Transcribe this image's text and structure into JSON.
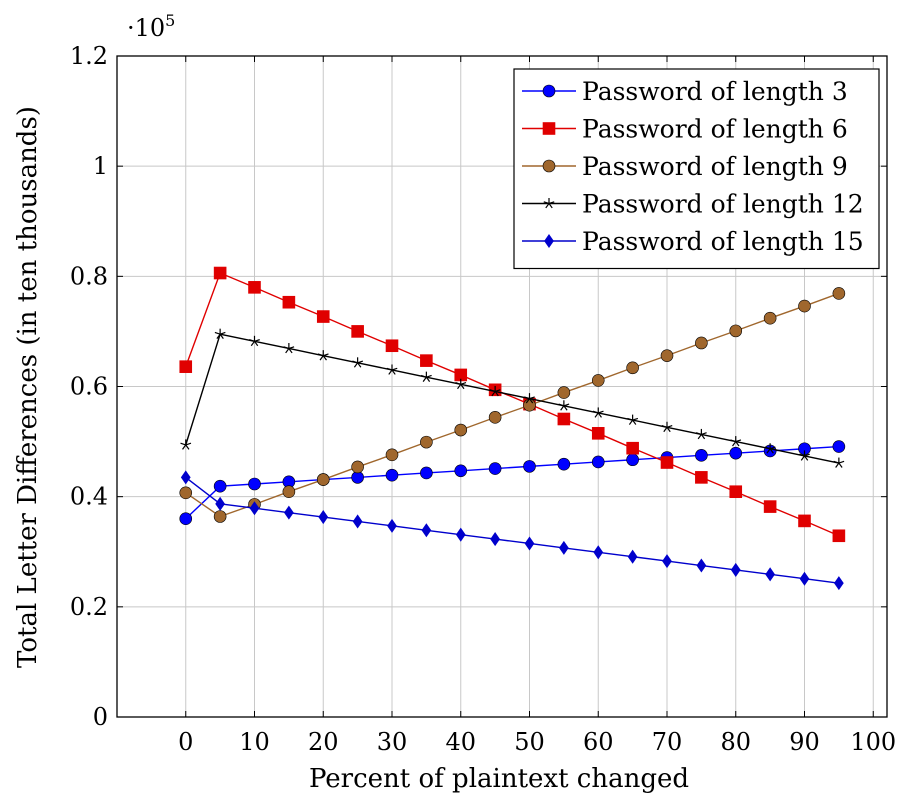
{
  "chart_data": {
    "type": "line",
    "title": "",
    "xlabel": "Percent of plaintext changed",
    "ylabel": "Total Letter Differences (in ten thousands)",
    "y_scale_note": {
      "base": "·10",
      "exponent": "5"
    },
    "xlim": [
      -10,
      102
    ],
    "ylim": [
      0,
      120000
    ],
    "x_ticks": [
      0,
      10,
      20,
      30,
      40,
      50,
      60,
      70,
      80,
      90,
      100
    ],
    "x_tick_labels": [
      "0",
      "10",
      "20",
      "30",
      "40",
      "50",
      "60",
      "70",
      "80",
      "90",
      "100"
    ],
    "y_ticks": [
      0,
      20000,
      40000,
      60000,
      80000,
      100000,
      120000
    ],
    "y_tick_labels": [
      "0",
      "0.2",
      "0.4",
      "0.6",
      "0.8",
      "1",
      "1.2"
    ],
    "grid": true,
    "legend_position": "top-right",
    "x": [
      0,
      5,
      10,
      15,
      20,
      25,
      30,
      35,
      40,
      45,
      50,
      55,
      60,
      65,
      70,
      75,
      80,
      85,
      90,
      95
    ],
    "series": [
      {
        "name": "Password of length 3",
        "color": "#0000ff",
        "marker": "circle",
        "values": [
          36000,
          41900,
          42300,
          42700,
          43100,
          43500,
          43900,
          44300,
          44700,
          45100,
          45500,
          45900,
          46300,
          46700,
          47100,
          47500,
          47900,
          48300,
          48700,
          49100
        ]
      },
      {
        "name": "Password of length 6",
        "color": "#e00000",
        "marker": "square",
        "values": [
          63600,
          80600,
          78000,
          75300,
          72700,
          70000,
          67400,
          64700,
          62100,
          59400,
          56800,
          54100,
          51500,
          48800,
          46200,
          43500,
          40900,
          38200,
          35600,
          32900
        ]
      },
      {
        "name": "Password of length 9",
        "color": "#a0672d",
        "marker": "circle",
        "values": [
          40700,
          36400,
          38600,
          40900,
          43100,
          45400,
          47600,
          49900,
          52100,
          54400,
          56600,
          58900,
          61100,
          63400,
          65600,
          67900,
          70100,
          72400,
          74600,
          76900
        ]
      },
      {
        "name": "Password of length 12",
        "color": "#000000",
        "marker": "star",
        "values": [
          49400,
          69500,
          68200,
          66900,
          65600,
          64300,
          63000,
          61700,
          60400,
          59100,
          57800,
          56500,
          55200,
          53900,
          52600,
          51300,
          50000,
          48700,
          47400,
          46100
        ]
      },
      {
        "name": "Password of length 15",
        "color": "#0000cc",
        "marker": "diamond",
        "values": [
          43500,
          38700,
          37900,
          37100,
          36300,
          35500,
          34700,
          33900,
          33100,
          32300,
          31500,
          30700,
          29900,
          29100,
          28300,
          27500,
          26700,
          25900,
          25100,
          24300
        ]
      }
    ]
  }
}
